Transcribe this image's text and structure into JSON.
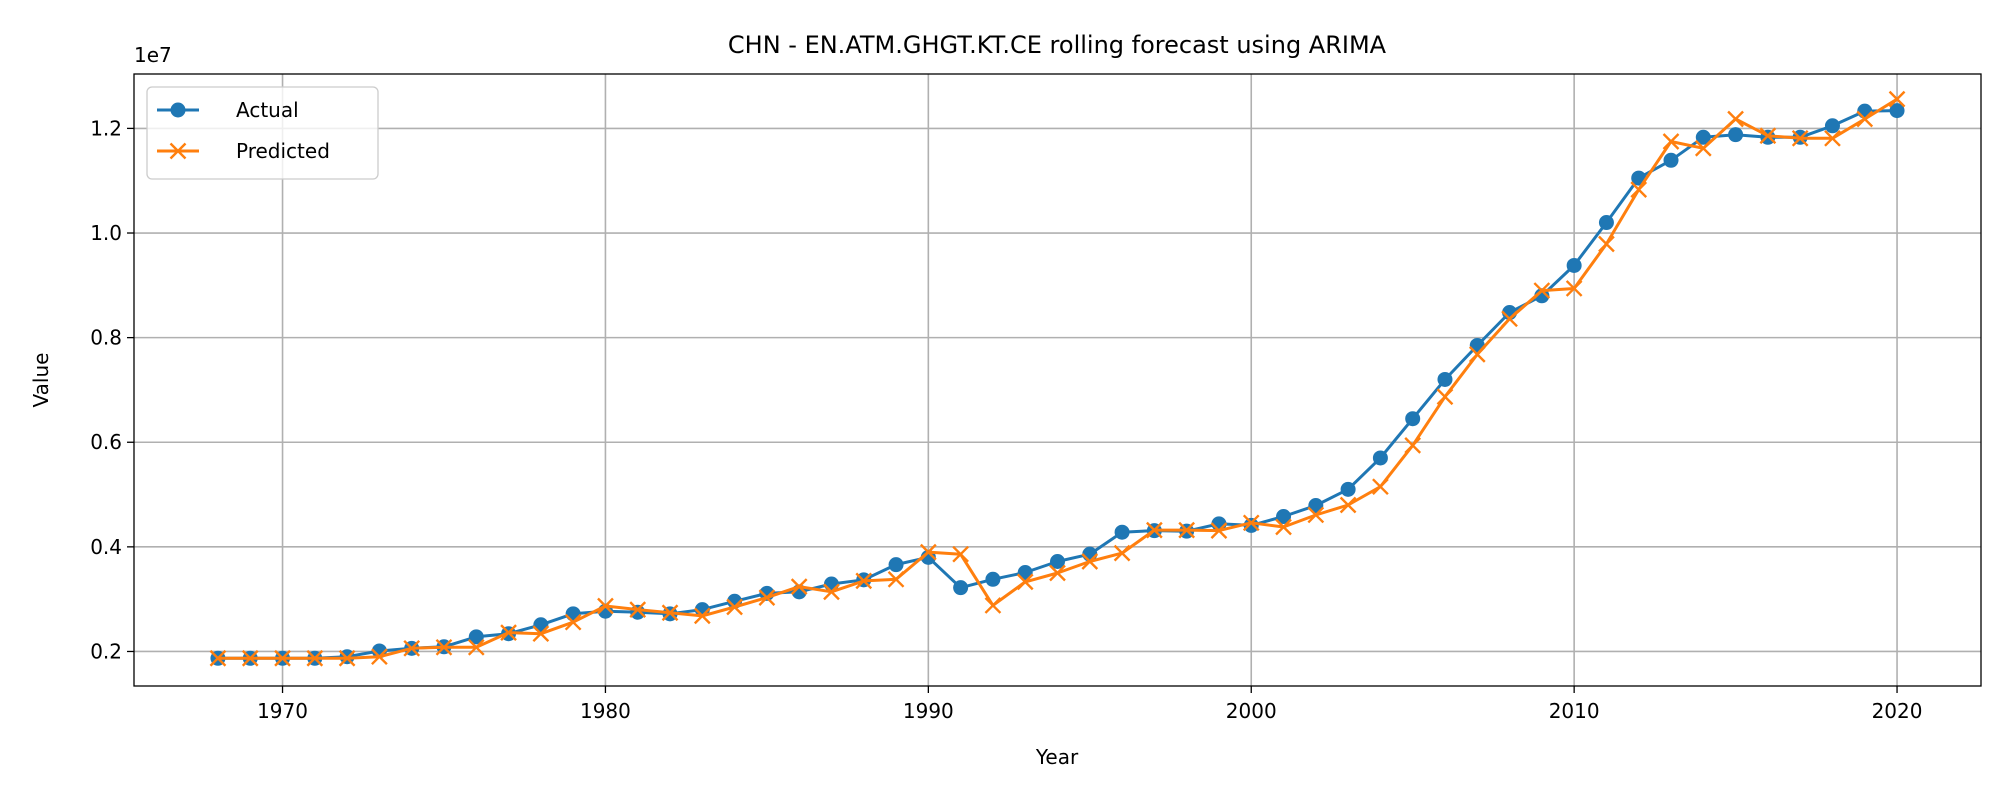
{
  "chart_data": {
    "type": "line",
    "title": "CHN - EN.ATM.GHGT.KT.CE rolling forecast using ARIMA",
    "xlabel": "Year",
    "ylabel": "Value",
    "y_offset_label": "1e7",
    "y_scale": 10000000,
    "xlim": [
      1965.4,
      2022.6
    ],
    "ylim": [
      1340000,
      13040000
    ],
    "x_ticks": [
      1970,
      1980,
      1990,
      2000,
      2010,
      2020
    ],
    "y_ticks": [
      0.2,
      0.4,
      0.6,
      0.8,
      1.0,
      1.2
    ],
    "y_tick_labels": [
      "0.2",
      "0.4",
      "0.6",
      "0.8",
      "1.0",
      "1.2"
    ],
    "grid": true,
    "legend_position": "top-left",
    "x": [
      1968,
      1969,
      1970,
      1971,
      1972,
      1973,
      1974,
      1975,
      1976,
      1977,
      1978,
      1979,
      1980,
      1981,
      1982,
      1983,
      1984,
      1985,
      1986,
      1987,
      1988,
      1989,
      1990,
      1991,
      1992,
      1993,
      1994,
      1995,
      1996,
      1997,
      1998,
      1999,
      2000,
      2001,
      2002,
      2003,
      2004,
      2005,
      2006,
      2007,
      2008,
      2009,
      2010,
      2011,
      2012,
      2013,
      2014,
      2015,
      2016,
      2017,
      2018,
      2019,
      2020
    ],
    "series": [
      {
        "name": "Actual",
        "color": "#1f77b4",
        "marker": "circle",
        "values": [
          1870000,
          1870000,
          1870000,
          1870000,
          1900000,
          2010000,
          2060000,
          2090000,
          2280000,
          2340000,
          2510000,
          2720000,
          2770000,
          2750000,
          2720000,
          2800000,
          2960000,
          3110000,
          3140000,
          3290000,
          3370000,
          3660000,
          3800000,
          3220000,
          3380000,
          3510000,
          3720000,
          3860000,
          4280000,
          4310000,
          4300000,
          4440000,
          4410000,
          4580000,
          4790000,
          5100000,
          5700000,
          6450000,
          7200000,
          7850000,
          8480000,
          8800000,
          9380000,
          10200000,
          11050000,
          11390000,
          11830000,
          11880000,
          11830000,
          11830000,
          12050000,
          12330000,
          12340000
        ]
      },
      {
        "name": "Predicted",
        "color": "#ff7f0e",
        "marker": "x",
        "values": [
          1870000,
          1870000,
          1870000,
          1870000,
          1870000,
          1900000,
          2060000,
          2080000,
          2080000,
          2360000,
          2340000,
          2560000,
          2870000,
          2800000,
          2740000,
          2680000,
          2850000,
          3030000,
          3240000,
          3140000,
          3350000,
          3380000,
          3900000,
          3860000,
          2880000,
          3330000,
          3500000,
          3720000,
          3880000,
          4320000,
          4320000,
          4310000,
          4460000,
          4380000,
          4610000,
          4800000,
          5150000,
          5940000,
          6870000,
          7680000,
          8360000,
          8900000,
          8940000,
          9790000,
          10830000,
          11750000,
          11620000,
          12180000,
          11860000,
          11810000,
          11810000,
          12180000,
          12560000
        ]
      }
    ]
  }
}
